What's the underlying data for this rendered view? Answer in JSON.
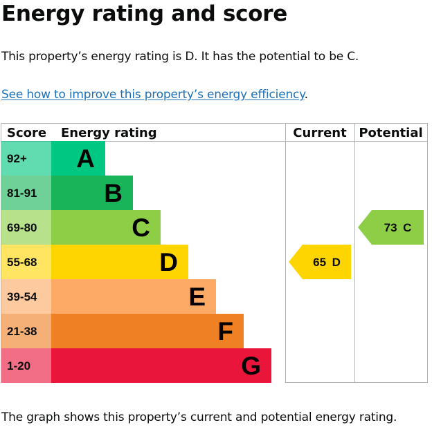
{
  "page": {
    "title": "Energy rating and score",
    "summary": "This property’s energy rating is D. It has the potential to be C.",
    "link_text": "See how to improve this property’s energy efficiency",
    "link_suffix": ".",
    "footer": "The graph shows this property’s current and potential energy rating."
  },
  "chart_data": {
    "type": "table",
    "columns": [
      "Score",
      "Energy rating",
      "Current",
      "Potential"
    ],
    "bands": [
      {
        "score": "92+",
        "letter": "A",
        "color": "#00c781"
      },
      {
        "score": "81-91",
        "letter": "B",
        "color": "#19b459"
      },
      {
        "score": "69-80",
        "letter": "C",
        "color": "#8dce46"
      },
      {
        "score": "55-68",
        "letter": "D",
        "color": "#ffd500"
      },
      {
        "score": "39-54",
        "letter": "E",
        "color": "#fcaa65"
      },
      {
        "score": "21-38",
        "letter": "F",
        "color": "#ef8023"
      },
      {
        "score": "1-20",
        "letter": "G",
        "color": "#e9153b"
      }
    ],
    "current": {
      "score": 65,
      "letter": "D",
      "label": "65 D",
      "color": "#ffd500"
    },
    "potential": {
      "score": 73,
      "letter": "C",
      "label": "73 C",
      "color": "#8dce46"
    }
  }
}
